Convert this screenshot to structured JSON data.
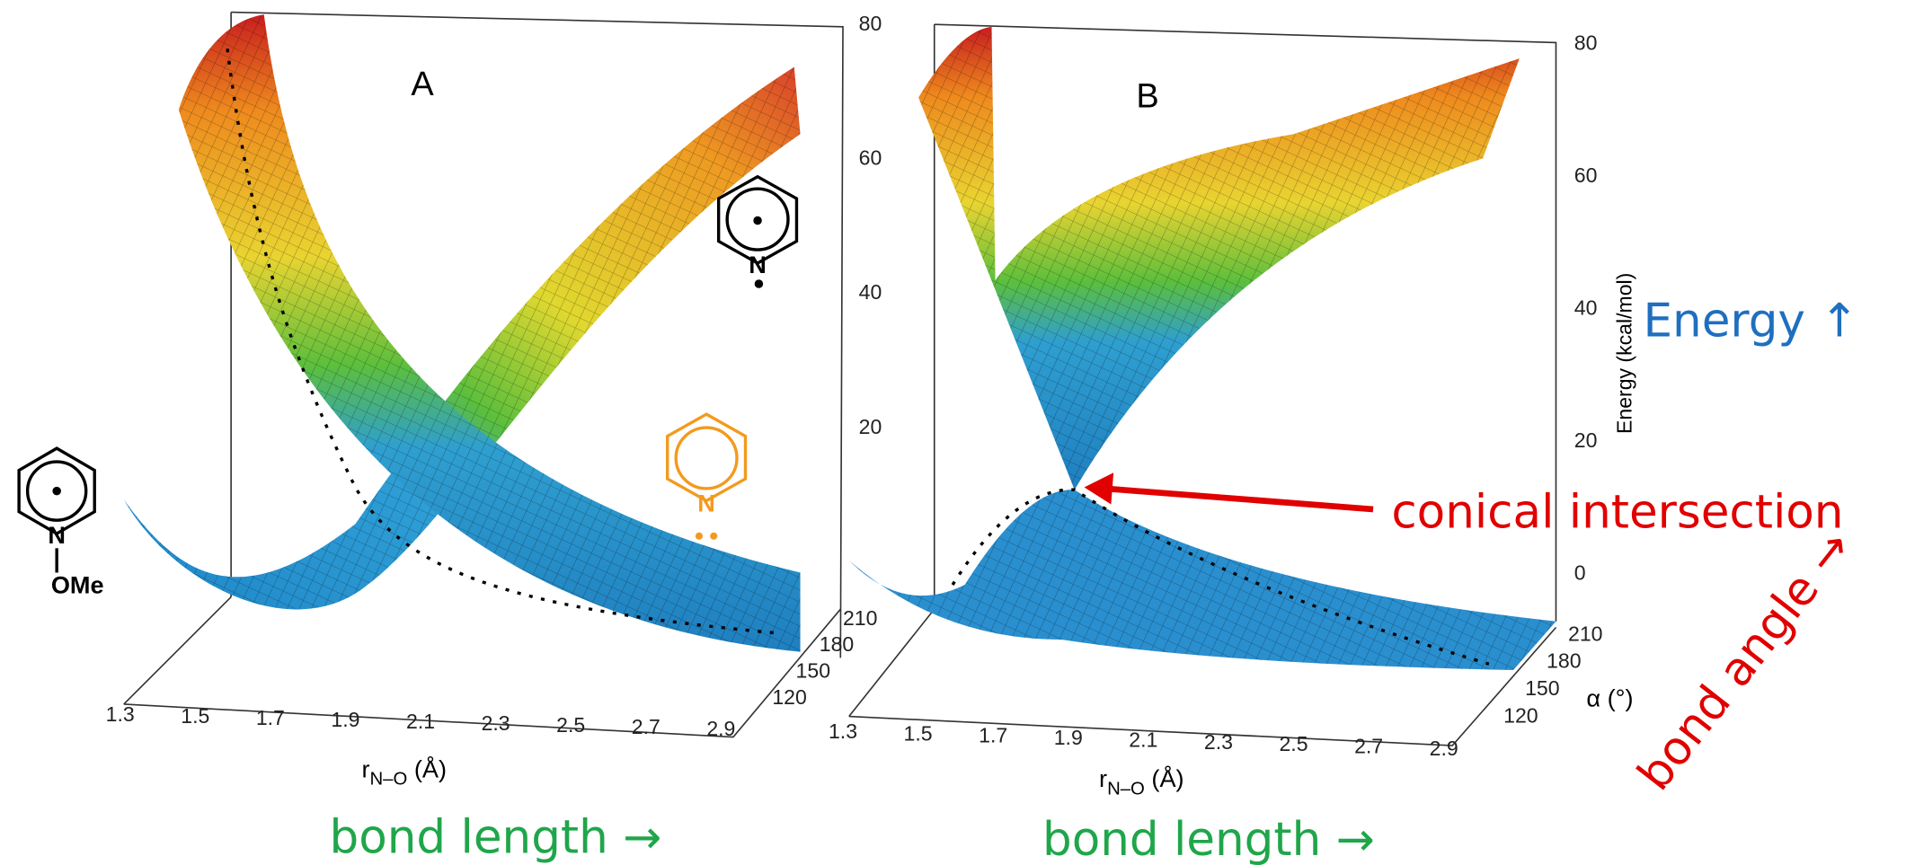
{
  "panels": [
    {
      "label": "A",
      "x_ticks": [
        "1.3",
        "1.5",
        "1.7",
        "1.9",
        "2.1",
        "2.3",
        "2.5",
        "2.7",
        "2.9"
      ],
      "x_label": {
        "main": "r",
        "sub": "N–O",
        "unit": " (Å)"
      },
      "angle_ticks": [
        "210",
        "180",
        "150",
        "120"
      ],
      "energy_ticks": [
        "80",
        "60",
        "40",
        "20"
      ]
    },
    {
      "label": "B",
      "x_ticks": [
        "1.3",
        "1.5",
        "1.7",
        "1.9",
        "2.1",
        "2.3",
        "2.5",
        "2.7",
        "2.9"
      ],
      "x_label": {
        "main": "r",
        "sub": "N–O",
        "unit": " (Å)"
      },
      "angle_ticks": [
        "210",
        "180",
        "150",
        "120"
      ],
      "angle_label": "α (°)",
      "energy_ticks": [
        "80",
        "60",
        "40",
        "20",
        "0"
      ],
      "energy_label": "Energy (kcal/mol)"
    }
  ],
  "molecules": {
    "left_n": "N",
    "left_sub": "OMe",
    "right_n": "N",
    "orange_n": "N"
  },
  "annotations": {
    "bond_length_a": "bond length →",
    "bond_length_b": "bond length →",
    "energy": "Energy ↑",
    "conical": "conical intersection",
    "bond_angle": "bond angle →"
  }
}
